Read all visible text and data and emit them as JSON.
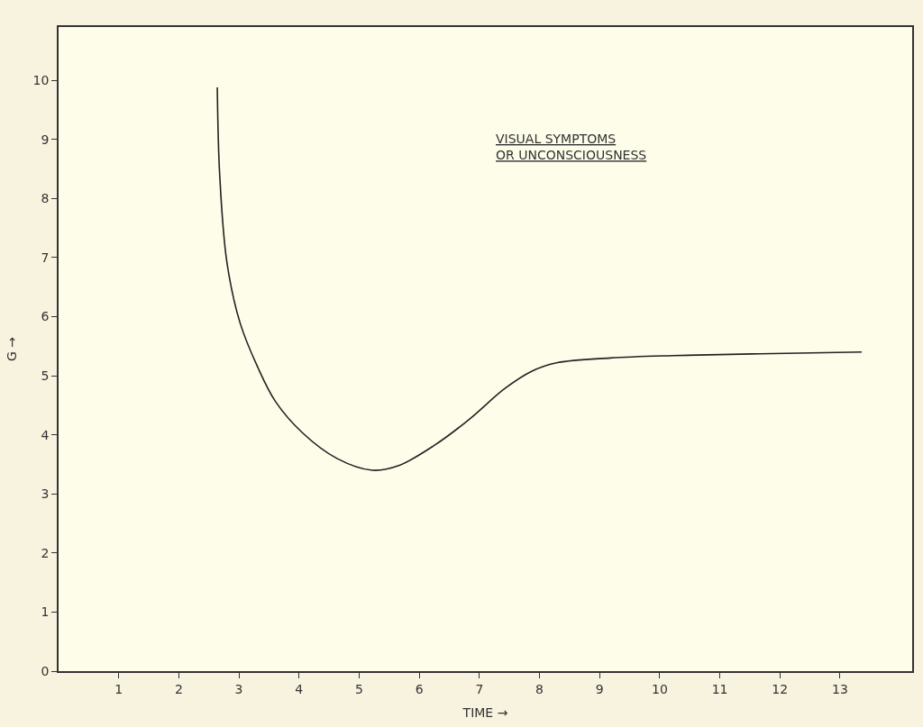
{
  "chart_data": {
    "type": "line",
    "xlabel": "TIME →",
    "ylabel": "G →",
    "annotations": [
      "VISUAL SYMPTOMS\nOR UNCONSCIOUSNESS"
    ],
    "x": [
      2.64,
      2.68,
      2.8,
      3.02,
      3.31,
      3.61,
      4.05,
      4.63,
      5.22,
      5.66,
      6.25,
      6.83,
      7.42,
      7.86,
      8.3,
      9.18,
      10.21,
      11.67,
      13.36
    ],
    "series": [
      {
        "color": "#222222",
        "values": [
          9.88,
          8.4,
          6.92,
          5.89,
          5.15,
          4.56,
          4.04,
          3.6,
          3.4,
          3.48,
          3.82,
          4.26,
          4.78,
          5.07,
          5.22,
          5.3,
          5.34,
          5.37,
          5.4
        ]
      }
    ],
    "xlim": [
      0,
      14.2
    ],
    "ylim": [
      0,
      10.9
    ],
    "xticks": [
      1,
      2,
      3,
      4,
      5,
      6,
      7,
      8,
      9,
      10,
      11,
      12,
      13
    ],
    "yticks": [
      0,
      1,
      2,
      3,
      4,
      5,
      6,
      7,
      8,
      9,
      10
    ],
    "grid": false,
    "marker": "none",
    "line_style": "solid"
  }
}
